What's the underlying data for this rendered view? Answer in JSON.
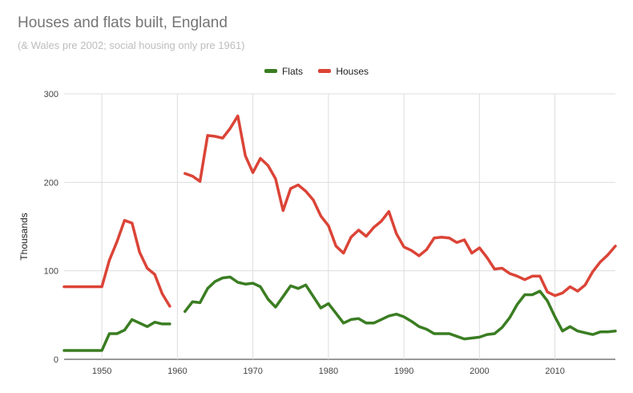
{
  "chart_data": {
    "type": "line",
    "title": "Houses and flats built, England",
    "subtitle": "(& Wales pre 2002; social housing only pre 1961)",
    "xlabel": "",
    "ylabel": "Thousands",
    "xlim": [
      1945,
      2018
    ],
    "ylim": [
      0,
      300
    ],
    "xticks": [
      1950,
      1960,
      1970,
      1980,
      1990,
      2000,
      2010
    ],
    "yticks": [
      0,
      100,
      200,
      300
    ],
    "grid": true,
    "legend_position": "top-center",
    "series": [
      {
        "name": "Flats",
        "color": "#3a7d22",
        "segments": [
          {
            "x": [
              1945,
              1946,
              1947,
              1948,
              1949,
              1950,
              1951,
              1952,
              1953,
              1954,
              1955,
              1956,
              1957,
              1958,
              1959
            ],
            "y": [
              10,
              10,
              10,
              10,
              10,
              10,
              29,
              29,
              33,
              45,
              41,
              37,
              42,
              40,
              40
            ]
          },
          {
            "x": [
              1961,
              1962,
              1963,
              1964,
              1965,
              1966,
              1967,
              1968,
              1969,
              1970,
              1971,
              1972,
              1973,
              1974,
              1975,
              1976,
              1977,
              1978,
              1979,
              1980,
              1981,
              1982,
              1983,
              1984,
              1985,
              1986,
              1987,
              1988,
              1989,
              1990,
              1991,
              1992,
              1993,
              1994,
              1995,
              1996,
              1997,
              1998,
              1999,
              2000,
              2001,
              2002,
              2003,
              2004,
              2005,
              2006,
              2007,
              2008,
              2009,
              2010,
              2011,
              2012,
              2013,
              2014,
              2015,
              2016,
              2017,
              2018
            ],
            "y": [
              54,
              65,
              64,
              80,
              88,
              92,
              93,
              87,
              85,
              86,
              82,
              68,
              59,
              71,
              83,
              80,
              84,
              71,
              58,
              63,
              52,
              41,
              45,
              46,
              41,
              41,
              45,
              49,
              51,
              48,
              43,
              37,
              34,
              29,
              29,
              29,
              26,
              23,
              24,
              25,
              28,
              29,
              36,
              47,
              62,
              73,
              73,
              77,
              66,
              48,
              32,
              37,
              32,
              30,
              28,
              31,
              31,
              32
            ]
          }
        ]
      },
      {
        "name": "Houses",
        "color": "#db4437",
        "segments": [
          {
            "x": [
              1945,
              1946,
              1947,
              1948,
              1949,
              1950,
              1951,
              1952,
              1953,
              1954,
              1955,
              1956,
              1957,
              1958,
              1959
            ],
            "y": [
              82,
              82,
              82,
              82,
              82,
              82,
              112,
              133,
              157,
              154,
              121,
              103,
              96,
              74,
              60
            ]
          },
          {
            "x": [
              1961,
              1962,
              1963,
              1964,
              1965,
              1966,
              1967,
              1968,
              1969,
              1970,
              1971,
              1972,
              1973,
              1974,
              1975,
              1976,
              1977,
              1978,
              1979,
              1980,
              1981,
              1982,
              1983,
              1984,
              1985,
              1986,
              1987,
              1988,
              1989,
              1990,
              1991,
              1992,
              1993,
              1994,
              1995,
              1996,
              1997,
              1998,
              1999,
              2000,
              2001,
              2002,
              2003,
              2004,
              2005,
              2006,
              2007,
              2008,
              2009,
              2010,
              2011,
              2012,
              2013,
              2014,
              2015,
              2016,
              2017,
              2018
            ],
            "y": [
              210,
              207,
              201,
              253,
              252,
              250,
              261,
              275,
              230,
              211,
              227,
              219,
              204,
              168,
              193,
              197,
              190,
              180,
              162,
              151,
              128,
              120,
              138,
              146,
              139,
              149,
              156,
              167,
              142,
              127,
              123,
              117,
              124,
              137,
              138,
              137,
              132,
              135,
              120,
              126,
              115,
              102,
              103,
              97,
              94,
              90,
              94,
              94,
              76,
              72,
              75,
              82,
              77,
              84,
              99,
              110,
              118,
              128
            ]
          }
        ]
      }
    ]
  }
}
